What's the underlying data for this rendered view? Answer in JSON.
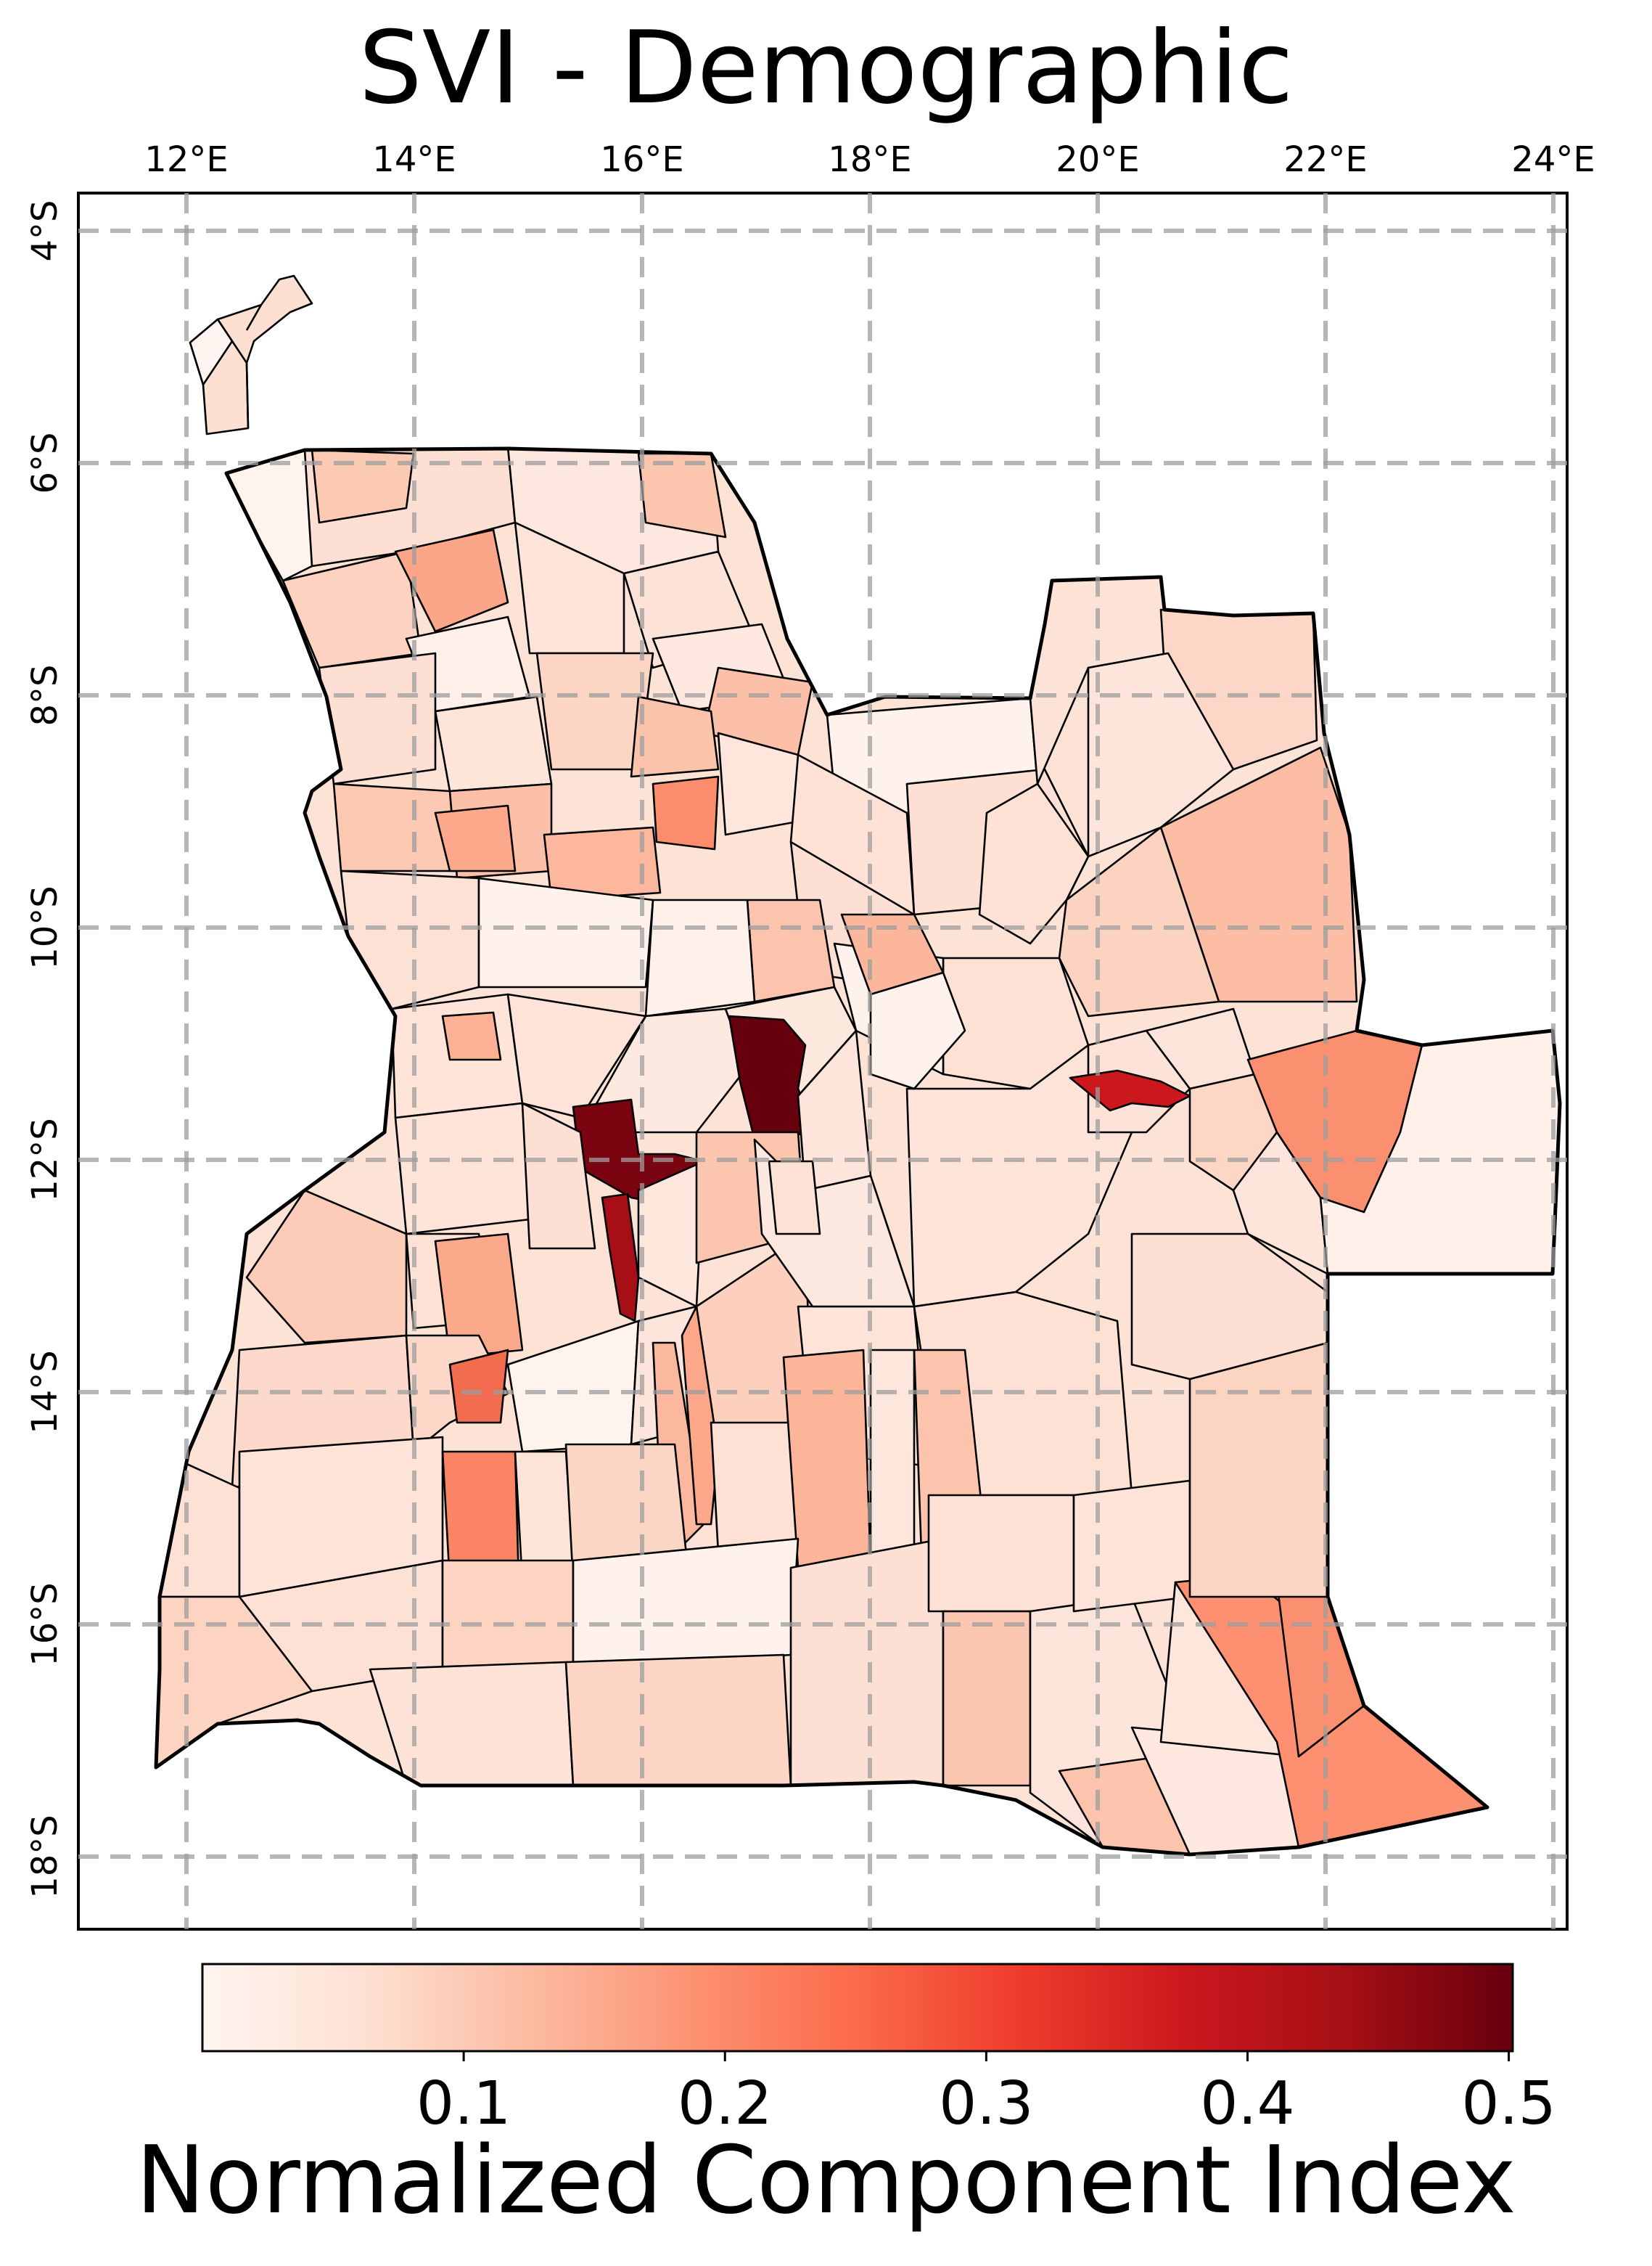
{
  "title": "SVI - Demographic",
  "colorbar": {
    "label": "Normalized Component Index",
    "ticks": [
      "0.1",
      "0.2",
      "0.3",
      "0.4",
      "0.5"
    ],
    "tick_values": [
      0.1,
      0.2,
      0.3,
      0.4,
      0.5
    ],
    "range": [
      0.0,
      0.5
    ],
    "colormap": "Reds",
    "colors": [
      "#fff5f0",
      "#fee0d2",
      "#fcbba1",
      "#fc9272",
      "#fb6a4a",
      "#ef3b2c",
      "#cb181d",
      "#a50f15",
      "#67000d"
    ]
  },
  "map": {
    "lon_ticks": [
      "12°E",
      "14°E",
      "16°E",
      "18°E",
      "20°E",
      "22°E",
      "24°E"
    ],
    "lat_ticks": [
      "4°S",
      "6°S",
      "8°S",
      "10°S",
      "12°S",
      "14°S",
      "16°S",
      "18°S"
    ],
    "grid": true,
    "highlight_values": [
      0.5,
      0.5,
      0.45,
      0.38,
      0.27,
      0.25,
      0.25,
      0.24,
      0.2,
      0.2,
      0.18
    ]
  }
}
